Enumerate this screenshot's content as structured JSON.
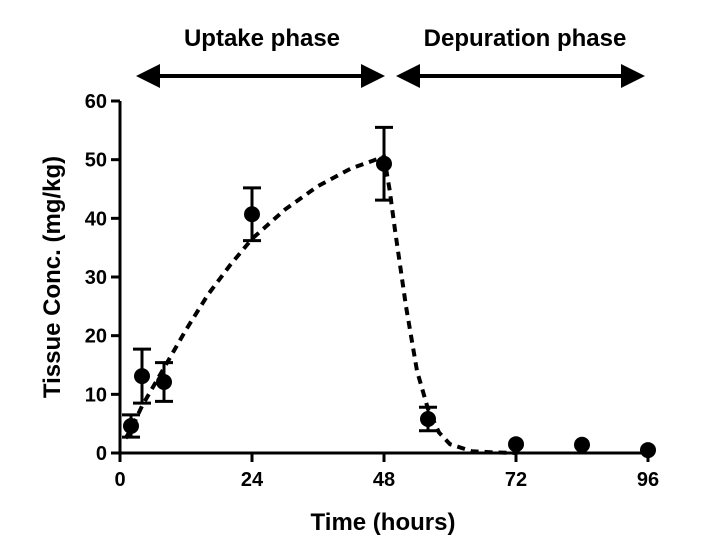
{
  "chart_data": {
    "type": "scatter",
    "annotations": [
      "Uptake phase",
      "Depuration phase"
    ],
    "x_label": "Time (hours)",
    "y_label": "Tissue Conc. (mg/kg)",
    "xlim": [
      0,
      96
    ],
    "xticks": [
      0,
      24,
      48,
      72,
      96
    ],
    "ylim": [
      0,
      60
    ],
    "yticks": [
      0,
      10,
      20,
      30,
      40,
      50,
      60
    ],
    "grid": false,
    "series": [
      {
        "color": "#000000",
        "x": [
          2,
          4,
          8,
          24,
          48,
          56,
          72,
          84,
          96
        ],
        "values": [
          4.6,
          13.1,
          12.1,
          40.7,
          49.3,
          5.8,
          1.5,
          1.4,
          0.5
        ],
        "errors": [
          1.9,
          4.6,
          3.3,
          4.5,
          6.2,
          2.0,
          null,
          null,
          null
        ]
      }
    ],
    "fit": {
      "color": "#000000",
      "x": [
        1,
        2,
        4,
        8,
        12,
        16,
        20,
        24,
        30,
        36,
        42,
        48,
        49,
        50,
        52,
        54,
        56,
        58,
        60,
        64,
        68,
        72
      ],
      "values": [
        2.5,
        4,
        8,
        14.5,
        21,
        27,
        32,
        36.5,
        41.5,
        45.5,
        48.5,
        50.5,
        45,
        38,
        25,
        14,
        7.5,
        3.5,
        1.5,
        0.3,
        0.1,
        0
      ]
    }
  }
}
